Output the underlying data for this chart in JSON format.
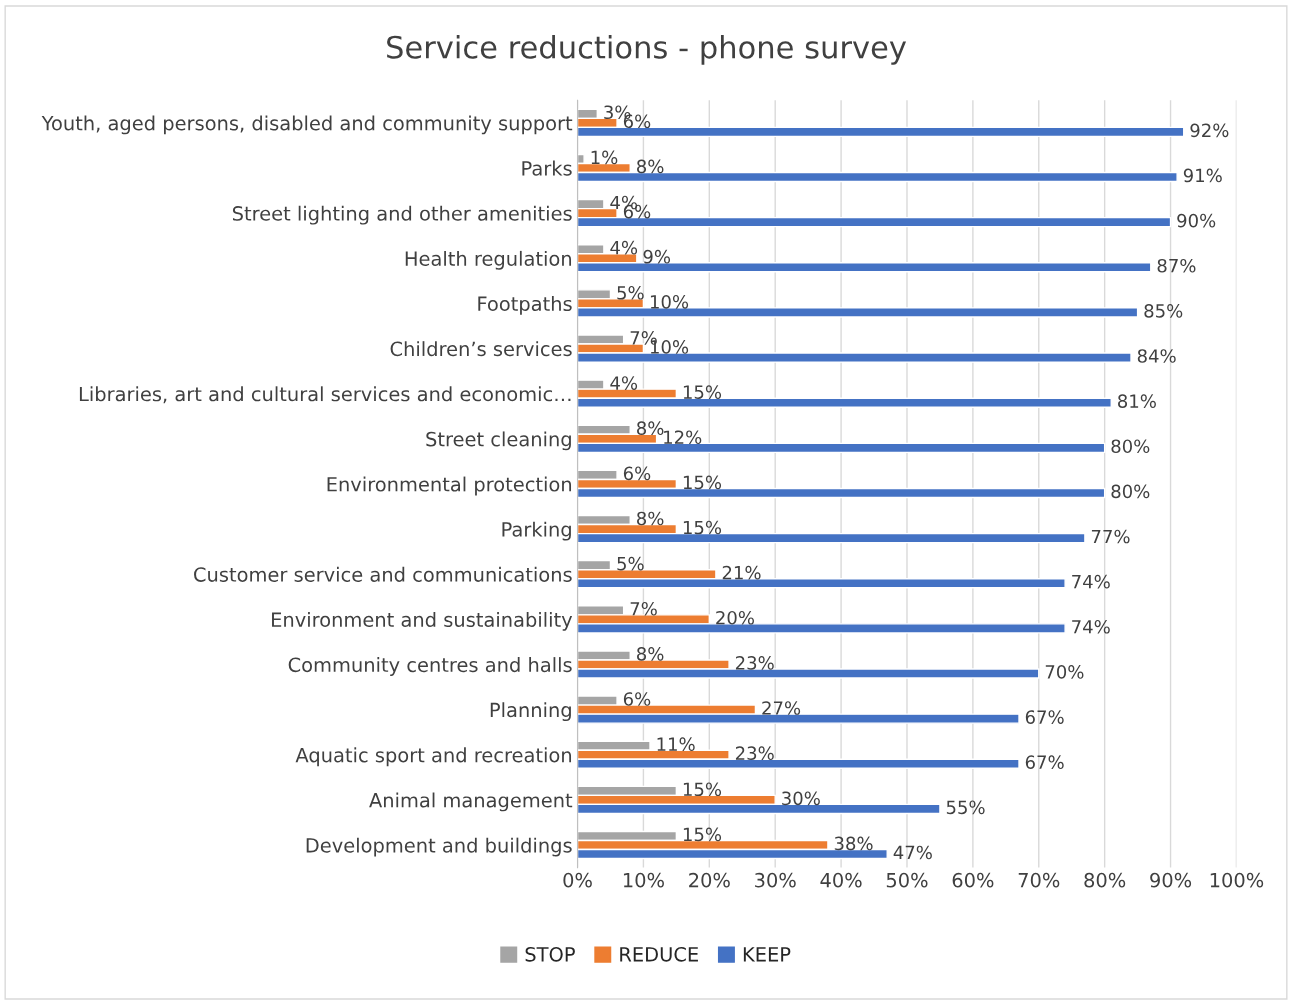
{
  "chart_data": {
    "type": "bar",
    "orientation": "horizontal",
    "title": "Service reductions - phone survey",
    "categories": [
      "Youth, aged persons, disabled and community support",
      "Parks",
      "Street lighting and other amenities",
      "Health regulation",
      "Footpaths",
      "Children’s services",
      "Libraries, art and cultural services and economic…",
      "Street cleaning",
      "Environmental protection",
      "Parking",
      "Customer service and communications",
      "Environment and sustainability",
      "Community centres and halls",
      "Planning",
      "Aquatic sport and recreation",
      "Animal management",
      "Development and buildings"
    ],
    "series": [
      {
        "name": "STOP",
        "color": "#a5a5a5",
        "values": [
          3,
          1,
          4,
          4,
          5,
          7,
          4,
          8,
          6,
          8,
          5,
          7,
          8,
          6,
          11,
          15,
          15
        ],
        "value_labels": [
          "3%",
          "1%",
          "4%",
          "4%",
          "5%",
          "7%",
          "4%",
          "8%",
          "6%",
          "8%",
          "5%",
          "7%",
          "8%",
          "6%",
          "11%",
          "15%",
          "15%"
        ]
      },
      {
        "name": "REDUCE",
        "color": "#ed7d31",
        "values": [
          6,
          8,
          6,
          9,
          10,
          10,
          15,
          12,
          15,
          15,
          21,
          20,
          23,
          27,
          23,
          30,
          38
        ],
        "value_labels": [
          "6%",
          "8%",
          "6%",
          "9%",
          "10%",
          "10%",
          "15%",
          "12%",
          "15%",
          "15%",
          "21%",
          "20%",
          "23%",
          "27%",
          "23%",
          "30%",
          "38%"
        ]
      },
      {
        "name": "KEEP",
        "color": "#4472c4",
        "values": [
          92,
          91,
          90,
          87,
          85,
          84,
          81,
          80,
          80,
          77,
          74,
          74,
          70,
          67,
          67,
          55,
          47
        ],
        "value_labels": [
          "92%",
          "91%",
          "90%",
          "87%",
          "85%",
          "84%",
          "81%",
          "80%",
          "80%",
          "77%",
          "74%",
          "74%",
          "70%",
          "67%",
          "67%",
          "55%",
          "47%"
        ]
      }
    ],
    "xlim": [
      0,
      100
    ],
    "xticks": [
      {
        "value": 0,
        "label": "0%"
      },
      {
        "value": 10,
        "label": "10%"
      },
      {
        "value": 20,
        "label": "20%"
      },
      {
        "value": 30,
        "label": "30%"
      },
      {
        "value": 40,
        "label": "40%"
      },
      {
        "value": 50,
        "label": "50%"
      },
      {
        "value": 60,
        "label": "60%"
      },
      {
        "value": 70,
        "label": "70%"
      },
      {
        "value": 80,
        "label": "80%"
      },
      {
        "value": 90,
        "label": "90%"
      },
      {
        "value": 100,
        "label": "100%"
      }
    ],
    "grid": "x",
    "legend": "bottom"
  }
}
